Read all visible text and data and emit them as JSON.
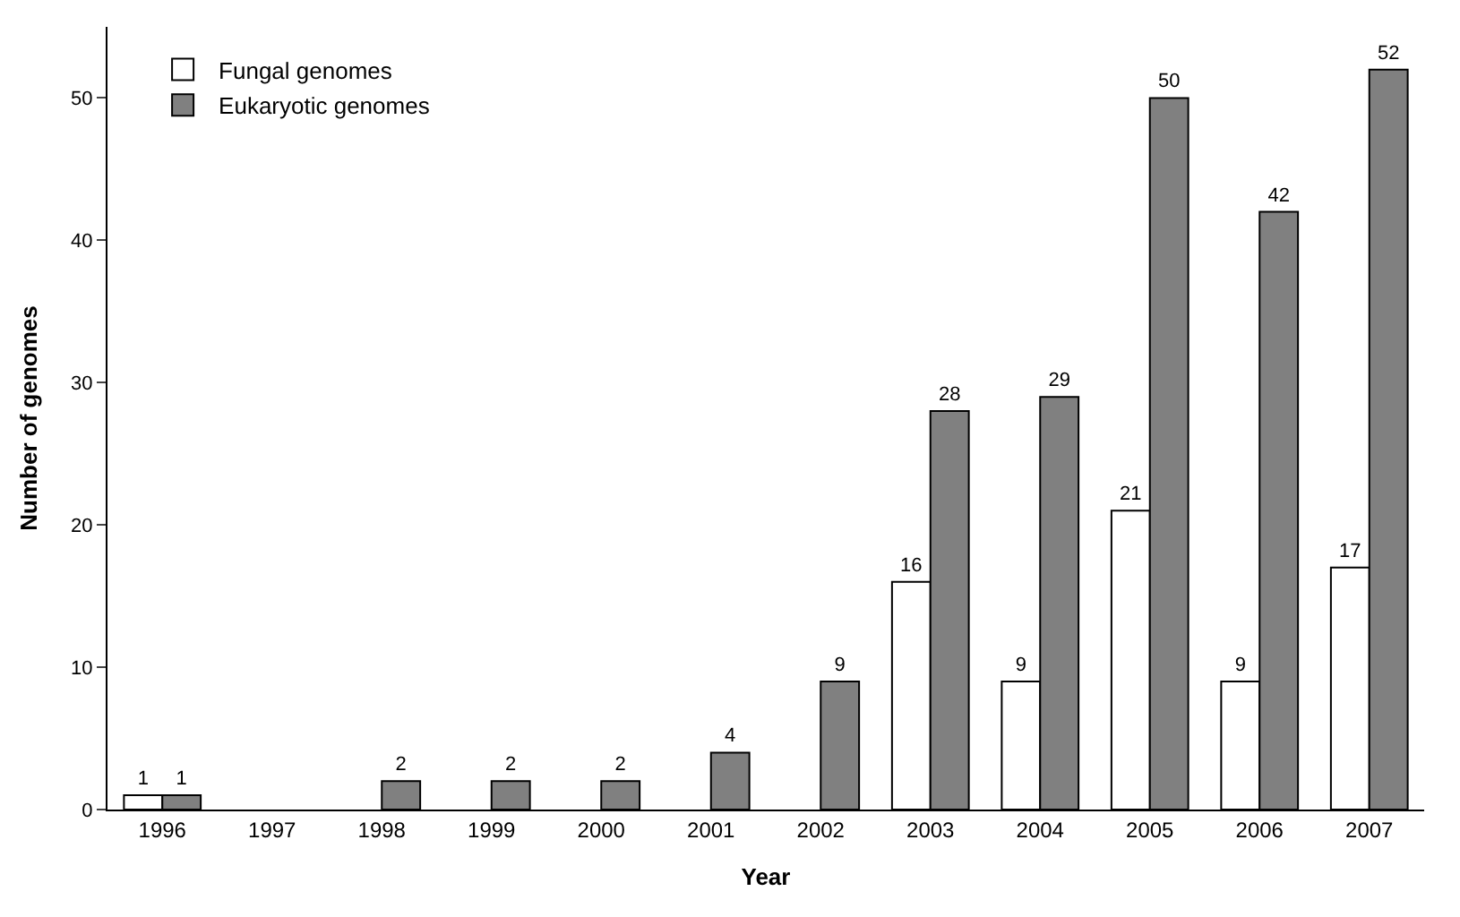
{
  "chart_data": {
    "type": "bar",
    "xlabel": "Year",
    "ylabel": "Number of genomes",
    "categories": [
      "1996",
      "1997",
      "1998",
      "1999",
      "2000",
      "2001",
      "2002",
      "2003",
      "2004",
      "2005",
      "2006",
      "2007"
    ],
    "series": [
      {
        "name": "Fungal genomes",
        "color": "#ffffff",
        "values": [
          1,
          null,
          null,
          null,
          null,
          null,
          null,
          16,
          9,
          21,
          9,
          17
        ]
      },
      {
        "name": "Eukaryotic genomes",
        "color": "#808080",
        "values": [
          1,
          null,
          2,
          2,
          2,
          4,
          9,
          28,
          29,
          50,
          42,
          52
        ]
      }
    ],
    "ylim": [
      0,
      55
    ],
    "yticks": [
      0,
      10,
      20,
      30,
      40,
      50
    ],
    "legend": "top left",
    "data_labels": true
  }
}
